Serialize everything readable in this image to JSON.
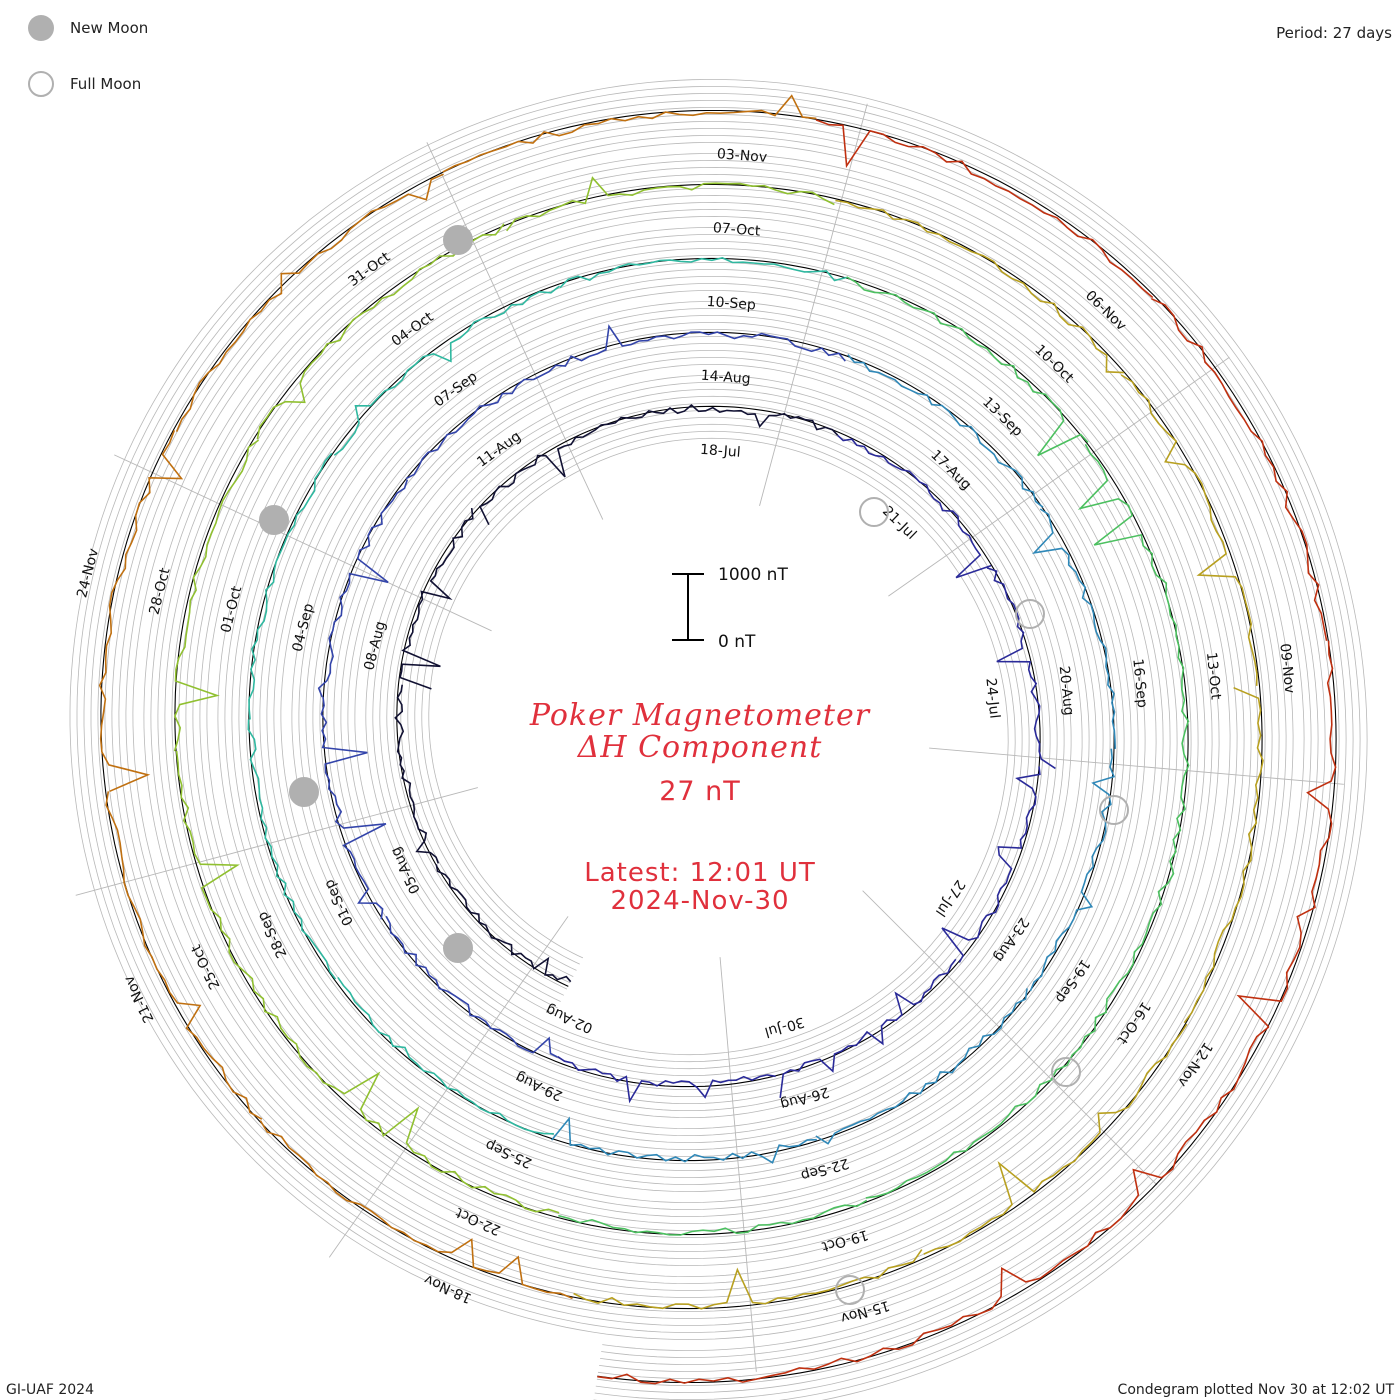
{
  "legend": {
    "new_moon": "New Moon",
    "full_moon": "Full Moon"
  },
  "period_label": "Period: 27 days",
  "footer_left": "GI-UAF 2024",
  "footer_right": "Condegram plotted Nov 30 at 12:02 UT",
  "title": {
    "line1": "Poker Magnetometer",
    "line2": "ΔH Component",
    "scale": "27 nT",
    "latest": "Latest: 12:01 UT",
    "date": "2024-Nov-30"
  },
  "scale_bar": {
    "top_label": "1000 nT",
    "bottom_label": "0 nT"
  },
  "colors": {
    "title": "#e0303c",
    "grid": "#b8b8b8",
    "rings": [
      "#111133",
      "#2a2a99",
      "#3344aa",
      "#2f88b8",
      "#2fb8a0",
      "#4cc060",
      "#90c030",
      "#b8a020",
      "#c07010",
      "#c03010"
    ],
    "moon": "#b0b0b0"
  },
  "chart_data": {
    "type": "condegram",
    "period_days": 27,
    "rings": [
      {
        "start": "18-Jul",
        "date_labels": [
          "18-Jul",
          "21-Jul",
          "24-Jul",
          "27-Jul",
          "30-Jul",
          "02-Aug",
          "05-Aug",
          "08-Aug",
          "11-Aug"
        ]
      },
      {
        "start": "14-Aug",
        "date_labels": [
          "14-Aug",
          "17-Aug",
          "20-Aug",
          "23-Aug",
          "26-Aug",
          "29-Aug",
          "01-Sep",
          "04-Sep",
          "07-Sep"
        ]
      },
      {
        "start": "10-Sep",
        "date_labels": [
          "10-Sep",
          "13-Sep",
          "16-Sep",
          "19-Sep",
          "22-Sep",
          "25-Sep",
          "28-Sep",
          "01-Oct",
          "04-Oct"
        ]
      },
      {
        "start": "07-Oct",
        "date_labels": [
          "07-Oct",
          "10-Oct",
          "13-Oct",
          "16-Oct",
          "19-Oct",
          "22-Oct",
          "25-Oct",
          "28-Oct",
          "31-Oct"
        ]
      },
      {
        "start": "03-Nov",
        "date_labels": [
          "03-Nov",
          "06-Nov",
          "09-Nov",
          "12-Nov",
          "15-Nov",
          "18-Nov",
          "21-Nov",
          "24-Nov"
        ]
      }
    ],
    "new_moons": [
      "04-Aug",
      "03-Sep",
      "02-Oct",
      "01-Nov"
    ],
    "full_moons": [
      "19-Jul",
      "19-Aug",
      "18-Sep",
      "17-Oct",
      "15-Nov"
    ]
  }
}
